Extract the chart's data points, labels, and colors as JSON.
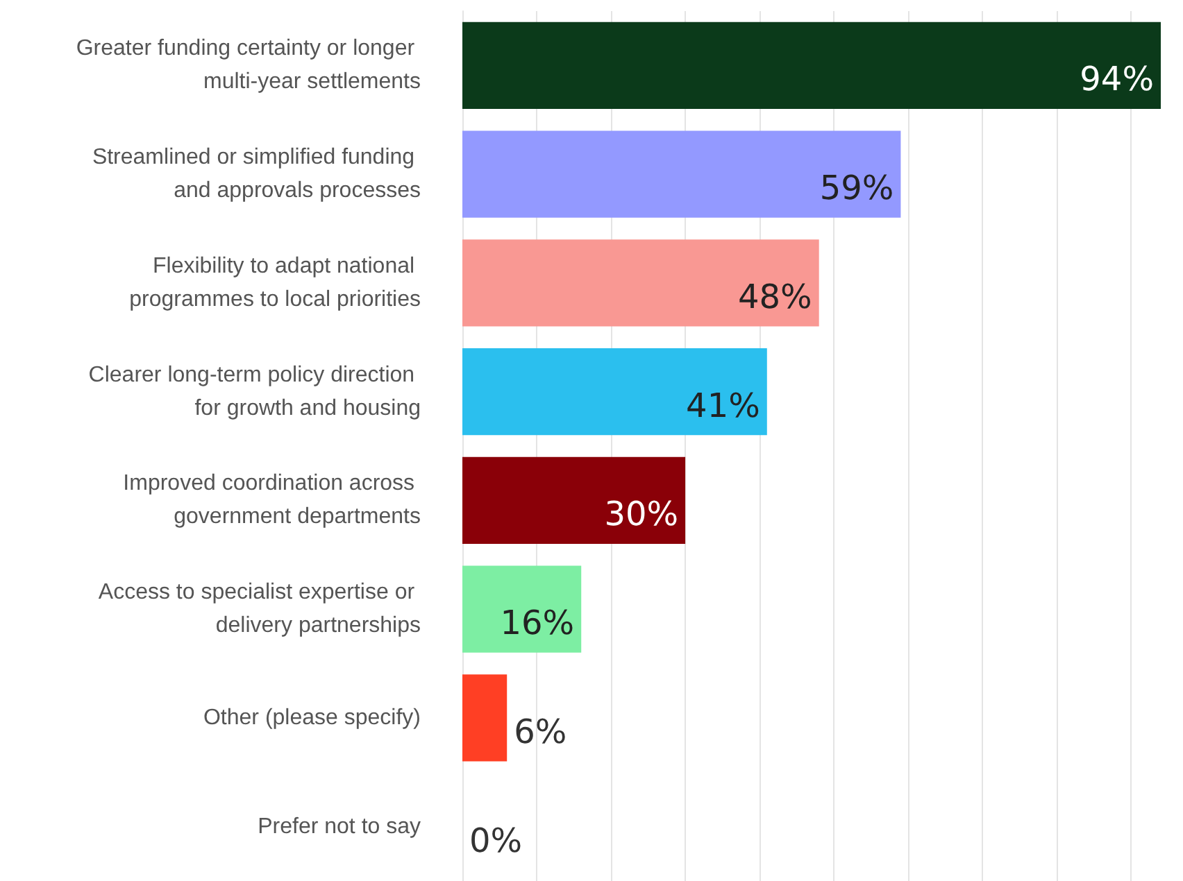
{
  "chart_data": {
    "type": "bar",
    "orientation": "horizontal",
    "relative": false,
    "categories": [
      "Greater funding certainty or longer multi-year settlements",
      "Streamlined or simplified funding and approvals processes",
      "Flexibility to adapt national programmes to local priorities",
      "Clearer long-term policy direction for growth and housing",
      "Improved coordination across government departments",
      "Access to specialist expertise or delivery partnerships",
      "Other (please specify)",
      "Prefer not to say"
    ],
    "values": [
      94,
      59,
      48,
      41,
      30,
      16,
      6,
      0
    ],
    "colors": [
      "#0b3a1a",
      "#9399ff",
      "#f99893",
      "#2bbfee",
      "#8a0008",
      "#7deea3",
      "#ff3f24",
      "#cccccc"
    ],
    "value_labels": [
      "94%",
      "59%",
      "48%",
      "41%",
      "30%",
      "16%",
      "6%",
      "0%"
    ],
    "xlim": [
      0,
      94
    ],
    "xticks": [
      {
        "value": 0,
        "label": null
      },
      {
        "value": 10,
        "label": null
      },
      {
        "value": 20,
        "label": null
      },
      {
        "value": 30,
        "label": null
      },
      {
        "value": 40,
        "label": null
      },
      {
        "value": 50,
        "label": null
      },
      {
        "value": 60,
        "label": null
      },
      {
        "value": 70,
        "label": null
      },
      {
        "value": 80,
        "label": null
      },
      {
        "value": 90,
        "label": null
      }
    ],
    "grid": "x",
    "tick_labels": "y"
  }
}
